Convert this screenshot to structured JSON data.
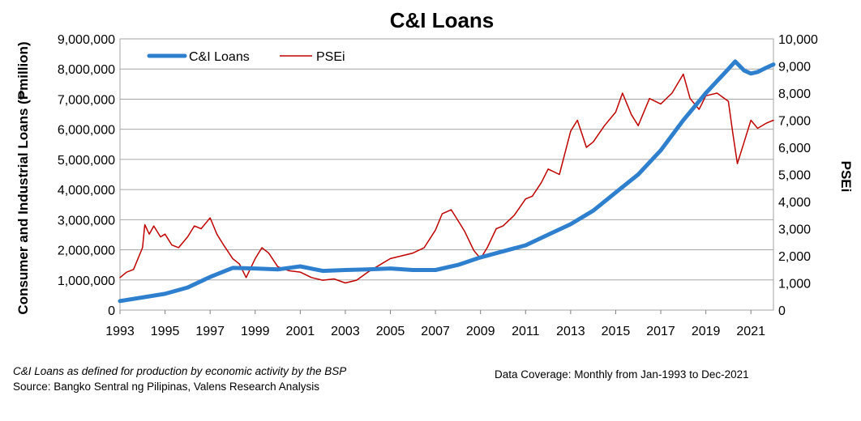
{
  "chart_data": {
    "type": "line",
    "title": "C&I Loans",
    "ylabel": "Consumer and Industrial Loans (₱million)",
    "y2label": "PSEi",
    "ylim": [
      0,
      9000000
    ],
    "y2lim": [
      0,
      10000
    ],
    "xlim": [
      1993,
      2022
    ],
    "yticks": [
      "0",
      "1,000,000",
      "2,000,000",
      "3,000,000",
      "4,000,000",
      "5,000,000",
      "6,000,000",
      "7,000,000",
      "8,000,000",
      "9,000,000"
    ],
    "y2ticks": [
      "0",
      "1,000",
      "2,000",
      "3,000",
      "4,000",
      "5,000",
      "6,000",
      "7,000",
      "8,000",
      "9,000",
      "10,000"
    ],
    "xticks": [
      "1993",
      "1995",
      "1997",
      "1999",
      "2001",
      "2003",
      "2005",
      "2007",
      "2009",
      "2011",
      "2013",
      "2015",
      "2017",
      "2019",
      "2021"
    ],
    "grid": "horizontal",
    "legend": "top-left",
    "series": [
      {
        "name": "C&I Loans",
        "axis": "left",
        "color": "#2E80CF",
        "points": [
          [
            1993.0,
            300000
          ],
          [
            1994.0,
            420000
          ],
          [
            1995.0,
            540000
          ],
          [
            1996.0,
            750000
          ],
          [
            1997.0,
            1100000
          ],
          [
            1998.0,
            1400000
          ],
          [
            1999.0,
            1380000
          ],
          [
            2000.0,
            1350000
          ],
          [
            2001.0,
            1450000
          ],
          [
            2002.0,
            1300000
          ],
          [
            2003.0,
            1330000
          ],
          [
            2004.0,
            1350000
          ],
          [
            2005.0,
            1380000
          ],
          [
            2006.0,
            1330000
          ],
          [
            2007.0,
            1330000
          ],
          [
            2008.0,
            1500000
          ],
          [
            2009.0,
            1750000
          ],
          [
            2010.0,
            1950000
          ],
          [
            2011.0,
            2150000
          ],
          [
            2012.0,
            2500000
          ],
          [
            2013.0,
            2850000
          ],
          [
            2014.0,
            3300000
          ],
          [
            2015.0,
            3900000
          ],
          [
            2016.0,
            4500000
          ],
          [
            2017.0,
            5300000
          ],
          [
            2018.0,
            6300000
          ],
          [
            2019.0,
            7200000
          ],
          [
            2019.5,
            7600000
          ],
          [
            2020.0,
            8000000
          ],
          [
            2020.3,
            8250000
          ],
          [
            2020.7,
            7950000
          ],
          [
            2021.0,
            7850000
          ],
          [
            2021.3,
            7900000
          ],
          [
            2021.7,
            8050000
          ],
          [
            2022.0,
            8150000
          ]
        ]
      },
      {
        "name": "PSEi",
        "axis": "right",
        "color": "#C00000",
        "points": [
          [
            1993.0,
            1200
          ],
          [
            1993.3,
            1400
          ],
          [
            1993.6,
            1500
          ],
          [
            1994.0,
            2300
          ],
          [
            1994.1,
            3150
          ],
          [
            1994.3,
            2800
          ],
          [
            1994.5,
            3100
          ],
          [
            1994.8,
            2700
          ],
          [
            1995.0,
            2800
          ],
          [
            1995.3,
            2400
          ],
          [
            1995.6,
            2300
          ],
          [
            1996.0,
            2700
          ],
          [
            1996.3,
            3100
          ],
          [
            1996.6,
            3000
          ],
          [
            1997.0,
            3400
          ],
          [
            1997.3,
            2800
          ],
          [
            1997.6,
            2400
          ],
          [
            1998.0,
            1900
          ],
          [
            1998.3,
            1700
          ],
          [
            1998.6,
            1200
          ],
          [
            1999.0,
            1900
          ],
          [
            1999.3,
            2300
          ],
          [
            1999.6,
            2100
          ],
          [
            2000.0,
            1600
          ],
          [
            2000.5,
            1450
          ],
          [
            2001.0,
            1400
          ],
          [
            2001.5,
            1200
          ],
          [
            2002.0,
            1100
          ],
          [
            2002.5,
            1150
          ],
          [
            2003.0,
            1000
          ],
          [
            2003.5,
            1100
          ],
          [
            2004.0,
            1400
          ],
          [
            2004.5,
            1650
          ],
          [
            2005.0,
            1900
          ],
          [
            2005.5,
            2000
          ],
          [
            2006.0,
            2100
          ],
          [
            2006.5,
            2300
          ],
          [
            2007.0,
            2950
          ],
          [
            2007.3,
            3550
          ],
          [
            2007.7,
            3700
          ],
          [
            2008.0,
            3300
          ],
          [
            2008.3,
            2900
          ],
          [
            2008.7,
            2200
          ],
          [
            2009.0,
            1900
          ],
          [
            2009.3,
            2300
          ],
          [
            2009.7,
            3000
          ],
          [
            2010.0,
            3100
          ],
          [
            2010.5,
            3500
          ],
          [
            2011.0,
            4100
          ],
          [
            2011.3,
            4200
          ],
          [
            2011.7,
            4700
          ],
          [
            2012.0,
            5200
          ],
          [
            2012.5,
            5000
          ],
          [
            2013.0,
            6600
          ],
          [
            2013.3,
            7000
          ],
          [
            2013.7,
            6000
          ],
          [
            2014.0,
            6200
          ],
          [
            2014.5,
            6800
          ],
          [
            2015.0,
            7300
          ],
          [
            2015.3,
            8000
          ],
          [
            2015.7,
            7200
          ],
          [
            2016.0,
            6800
          ],
          [
            2016.5,
            7800
          ],
          [
            2017.0,
            7600
          ],
          [
            2017.5,
            8000
          ],
          [
            2018.0,
            8700
          ],
          [
            2018.3,
            7800
          ],
          [
            2018.7,
            7400
          ],
          [
            2019.0,
            7900
          ],
          [
            2019.5,
            8000
          ],
          [
            2020.0,
            7700
          ],
          [
            2020.2,
            6500
          ],
          [
            2020.4,
            5400
          ],
          [
            2020.7,
            6200
          ],
          [
            2021.0,
            7000
          ],
          [
            2021.3,
            6700
          ],
          [
            2021.7,
            6900
          ],
          [
            2022.0,
            7000
          ]
        ]
      }
    ]
  },
  "footnotes": {
    "definition": "C&I Loans as defined for production by economic activity by the BSP",
    "source": "Source: Bangko Sentral ng Pilipinas, Valens Research Analysis",
    "coverage": "Data Coverage: Monthly from Jan-1993 to Dec-2021"
  }
}
